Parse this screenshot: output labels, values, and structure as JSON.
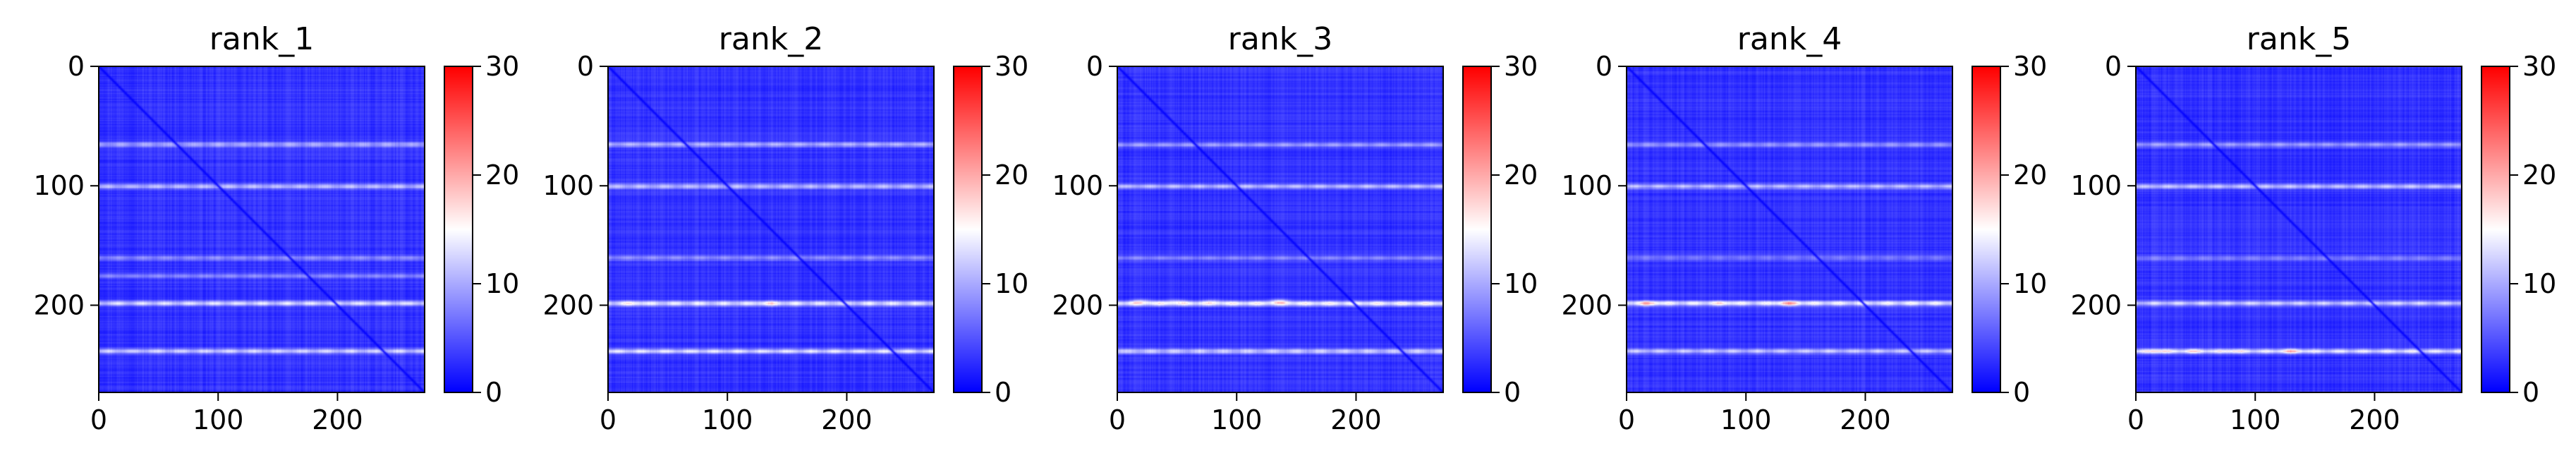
{
  "colormap": {
    "name": "bwr",
    "stops": [
      "#0000ff",
      "#ffffff",
      "#ff0000"
    ]
  },
  "chart_data": [
    {
      "type": "heatmap",
      "title": "rank_1",
      "x_ticks": [
        0,
        100,
        200
      ],
      "y_ticks": [
        0,
        100,
        200
      ],
      "xlim": [
        0,
        273
      ],
      "ylim": [
        273,
        0
      ],
      "colorbar": {
        "range": [
          0,
          30
        ],
        "ticks": [
          0,
          10,
          20,
          30
        ]
      },
      "matrix_size": 273,
      "baseline_value": 3,
      "diagonal_value": 0,
      "bright_rows": [
        {
          "row": 65,
          "value": 11
        },
        {
          "row": 100,
          "value": 12
        },
        {
          "row": 160,
          "value": 9
        },
        {
          "row": 175,
          "value": 8
        },
        {
          "row": 198,
          "value": 14
        },
        {
          "row": 238,
          "value": 13
        }
      ],
      "hot_spots": []
    },
    {
      "type": "heatmap",
      "title": "rank_2",
      "x_ticks": [
        0,
        100,
        200
      ],
      "y_ticks": [
        0,
        100,
        200
      ],
      "xlim": [
        0,
        273
      ],
      "ylim": [
        273,
        0
      ],
      "colorbar": {
        "range": [
          0,
          30
        ],
        "ticks": [
          0,
          10,
          20,
          30
        ]
      },
      "matrix_size": 273,
      "baseline_value": 3,
      "diagonal_value": 0,
      "bright_rows": [
        {
          "row": 65,
          "value": 11
        },
        {
          "row": 100,
          "value": 12
        },
        {
          "row": 160,
          "value": 9
        },
        {
          "row": 198,
          "value": 15
        },
        {
          "row": 238,
          "value": 14
        }
      ],
      "hot_spots": [
        {
          "row": 198,
          "col": 20,
          "value": 17
        },
        {
          "row": 198,
          "col": 135,
          "value": 18
        }
      ]
    },
    {
      "type": "heatmap",
      "title": "rank_3",
      "x_ticks": [
        0,
        100,
        200
      ],
      "y_ticks": [
        0,
        100,
        200
      ],
      "xlim": [
        0,
        273
      ],
      "ylim": [
        273,
        0
      ],
      "colorbar": {
        "range": [
          0,
          30
        ],
        "ticks": [
          0,
          10,
          20,
          30
        ]
      },
      "matrix_size": 273,
      "baseline_value": 3,
      "diagonal_value": 0,
      "bright_rows": [
        {
          "row": 65,
          "value": 10
        },
        {
          "row": 100,
          "value": 12
        },
        {
          "row": 160,
          "value": 8
        },
        {
          "row": 198,
          "value": 16
        },
        {
          "row": 238,
          "value": 13
        }
      ],
      "hot_spots": [
        {
          "row": 196,
          "col": 20,
          "value": 19
        },
        {
          "row": 196,
          "col": 48,
          "value": 18
        },
        {
          "row": 196,
          "col": 80,
          "value": 17
        },
        {
          "row": 196,
          "col": 135,
          "value": 20
        }
      ]
    },
    {
      "type": "heatmap",
      "title": "rank_4",
      "x_ticks": [
        0,
        100,
        200
      ],
      "y_ticks": [
        0,
        100,
        200
      ],
      "xlim": [
        0,
        273
      ],
      "ylim": [
        273,
        0
      ],
      "colorbar": {
        "range": [
          0,
          30
        ],
        "ticks": [
          0,
          10,
          20,
          30
        ]
      },
      "matrix_size": 273,
      "baseline_value": 3,
      "diagonal_value": 0,
      "bright_rows": [
        {
          "row": 65,
          "value": 10
        },
        {
          "row": 100,
          "value": 12
        },
        {
          "row": 160,
          "value": 8
        },
        {
          "row": 198,
          "value": 16
        },
        {
          "row": 238,
          "value": 13
        }
      ],
      "hot_spots": [
        {
          "row": 198,
          "col": 18,
          "value": 20
        },
        {
          "row": 198,
          "col": 80,
          "value": 17
        },
        {
          "row": 198,
          "col": 135,
          "value": 21
        }
      ]
    },
    {
      "type": "heatmap",
      "title": "rank_5",
      "x_ticks": [
        0,
        100,
        200
      ],
      "y_ticks": [
        0,
        100,
        200
      ],
      "xlim": [
        0,
        273
      ],
      "ylim": [
        273,
        0
      ],
      "colorbar": {
        "range": [
          0,
          30
        ],
        "ticks": [
          0,
          10,
          20,
          30
        ]
      },
      "matrix_size": 273,
      "baseline_value": 3,
      "diagonal_value": 0,
      "bright_rows": [
        {
          "row": 65,
          "value": 10
        },
        {
          "row": 100,
          "value": 12
        },
        {
          "row": 160,
          "value": 8
        },
        {
          "row": 198,
          "value": 13
        },
        {
          "row": 238,
          "value": 15
        }
      ],
      "hot_spots": [
        {
          "row": 238,
          "col": 18,
          "value": 19
        },
        {
          "row": 238,
          "col": 48,
          "value": 18
        },
        {
          "row": 238,
          "col": 80,
          "value": 18
        },
        {
          "row": 238,
          "col": 130,
          "value": 20
        }
      ]
    }
  ]
}
